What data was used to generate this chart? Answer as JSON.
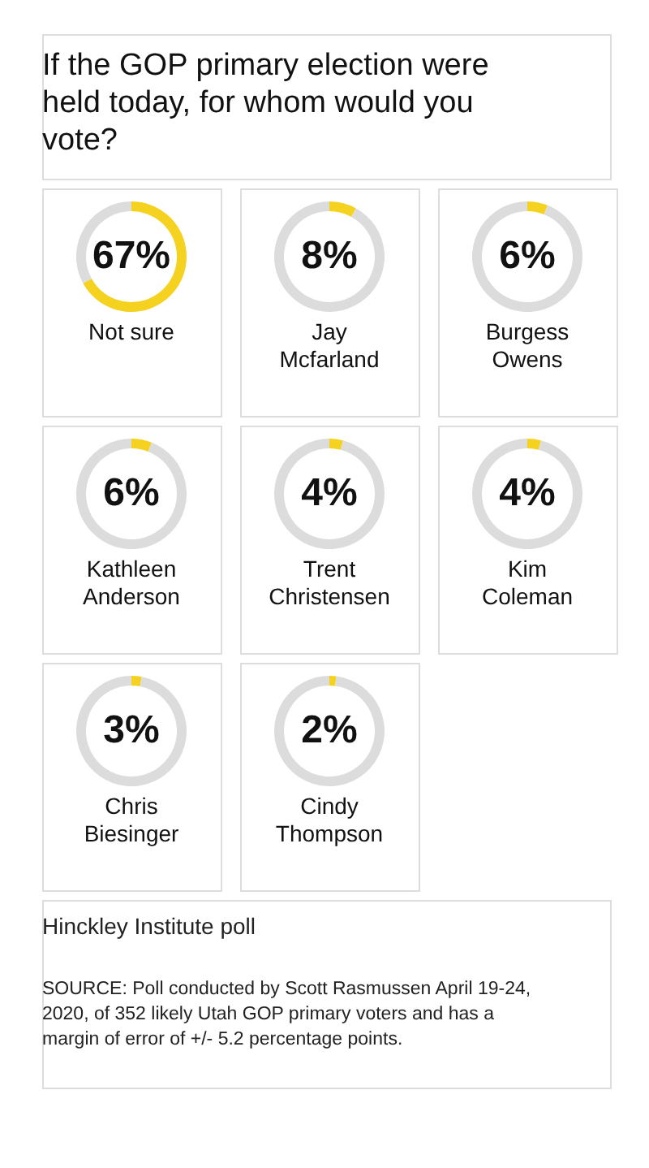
{
  "chart_data": [
    {
      "type": "other",
      "title": "If the GOP primary election were held today, for whom would you vote?"
    },
    {
      "type": "donut",
      "title": "Not sure",
      "categories": [
        null,
        null
      ],
      "values": [
        67,
        33
      ],
      "colors": [
        "#f5d21f",
        "#dcdcdc"
      ],
      "value_labels": [
        "67%",
        null
      ]
    },
    {
      "type": "donut",
      "title": "Jay Mcfarland",
      "categories": [
        null,
        null
      ],
      "values": [
        8,
        92
      ],
      "colors": [
        "#f5d21f",
        "#dcdcdc"
      ],
      "value_labels": [
        "8%",
        null
      ]
    },
    {
      "type": "donut",
      "title": "Burgess Owens",
      "categories": [
        null,
        null
      ],
      "values": [
        6,
        94
      ],
      "colors": [
        "#f5d21f",
        "#dcdcdc"
      ],
      "value_labels": [
        "6%",
        null
      ]
    },
    {
      "type": "donut",
      "title": "Kathleen Anderson",
      "categories": [
        null,
        null
      ],
      "values": [
        6,
        94
      ],
      "colors": [
        "#f5d21f",
        "#dcdcdc"
      ],
      "value_labels": [
        "6%",
        null
      ]
    },
    {
      "type": "donut",
      "title": "Trent Christensen",
      "categories": [
        null,
        null
      ],
      "values": [
        4,
        96
      ],
      "colors": [
        "#f5d21f",
        "#dcdcdc"
      ],
      "value_labels": [
        "4%",
        null
      ]
    },
    {
      "type": "donut",
      "title": "Kim Coleman",
      "categories": [
        null,
        null
      ],
      "values": [
        4,
        96
      ],
      "colors": [
        "#f5d21f",
        "#dcdcdc"
      ],
      "value_labels": [
        "4%",
        null
      ]
    },
    {
      "type": "donut",
      "title": "Chris Biesinger",
      "categories": [
        null,
        null
      ],
      "values": [
        3,
        97
      ],
      "colors": [
        "#f5d21f",
        "#dcdcdc"
      ],
      "value_labels": [
        "3%",
        null
      ]
    },
    {
      "type": "donut",
      "title": "Cindy Thompson",
      "categories": [
        null,
        null
      ],
      "values": [
        2,
        98
      ],
      "colors": [
        "#f5d21f",
        "#dcdcdc"
      ],
      "value_labels": [
        "2%",
        null
      ]
    },
    {
      "type": "other",
      "annotations": [
        "Hinckley Institute poll",
        "SOURCE: Poll conducted by Scott Rasmussen April 19-24, 2020, of 352 likely Utah GOP primary voters and has a margin of error of +/- 5.2 percentage points."
      ]
    }
  ]
}
